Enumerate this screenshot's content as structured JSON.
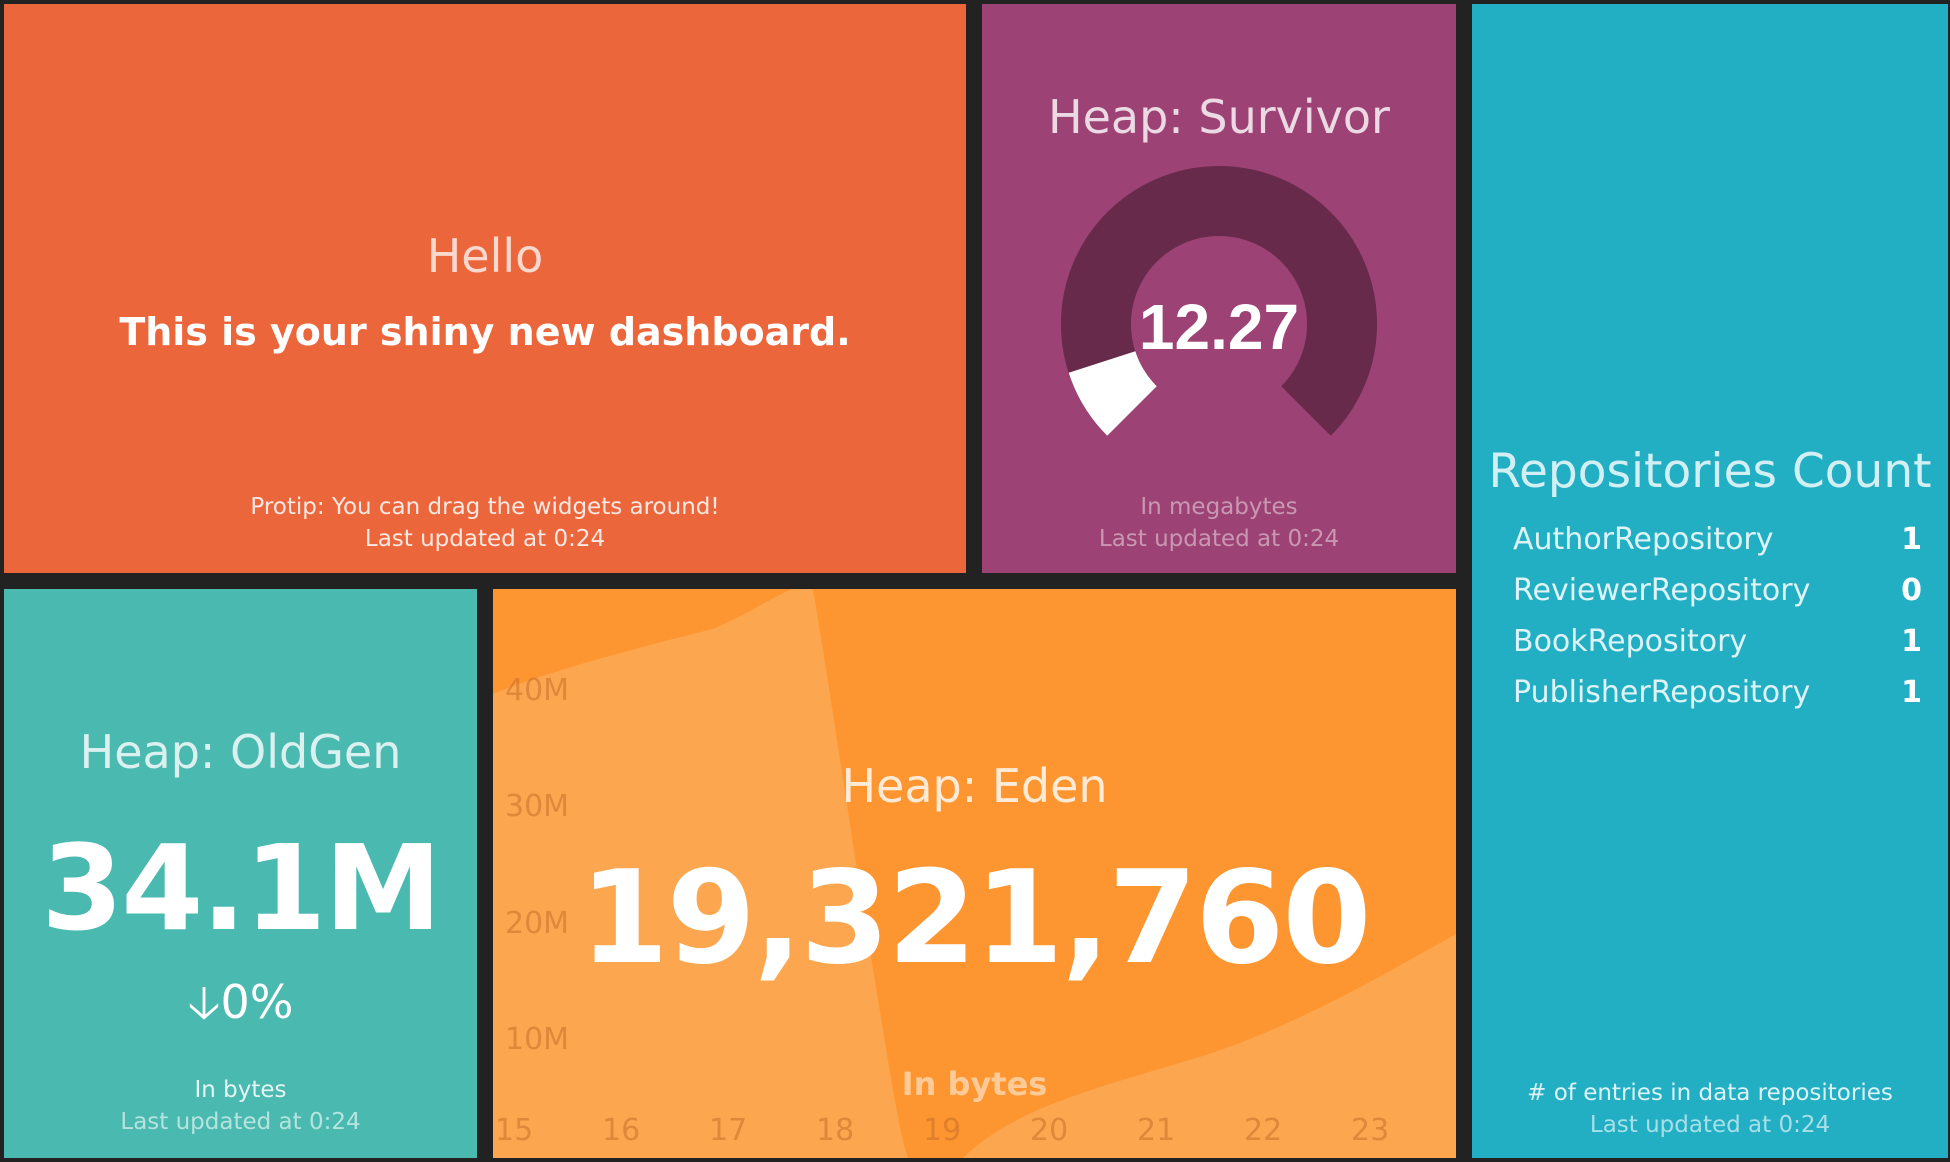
{
  "hello": {
    "title": "Hello",
    "text": "This is your shiny new dashboard.",
    "more_info": "Protip: You can drag the widgets around!",
    "updated": "Last updated at 0:24",
    "color": "#ec663c"
  },
  "survivor": {
    "title": "Heap: Survivor",
    "value": "12.27",
    "gauge_fraction": 0.1,
    "more_info": "In megabytes",
    "updated": "Last updated at 0:24",
    "color": "#9c4274"
  },
  "repositories": {
    "title": "Repositories Count",
    "items": [
      {
        "label": "AuthorRepository",
        "value": "1"
      },
      {
        "label": "ReviewerRepository",
        "value": "0"
      },
      {
        "label": "BookRepository",
        "value": "1"
      },
      {
        "label": "PublisherRepository",
        "value": "1"
      }
    ],
    "more_info": "# of entries in data repositories",
    "updated": "Last updated at 0:24",
    "color": "#22afc4"
  },
  "oldgen": {
    "title": "Heap: OldGen",
    "value": "34.1M",
    "change_icon": "arrow-down-icon",
    "change_arrow": "🡣",
    "change": "0%",
    "more_info": "In bytes",
    "updated": "Last updated at 0:24",
    "color": "#4ab9b0"
  },
  "eden": {
    "title": "Heap: Eden",
    "value": "19,321,760",
    "more_info": "In bytes",
    "color": "#fd9631",
    "y_ticks": [
      "40M",
      "30M",
      "20M",
      "10M"
    ],
    "x_ticks": [
      "15",
      "16",
      "17",
      "18",
      "19",
      "20",
      "21",
      "22",
      "23"
    ]
  }
}
